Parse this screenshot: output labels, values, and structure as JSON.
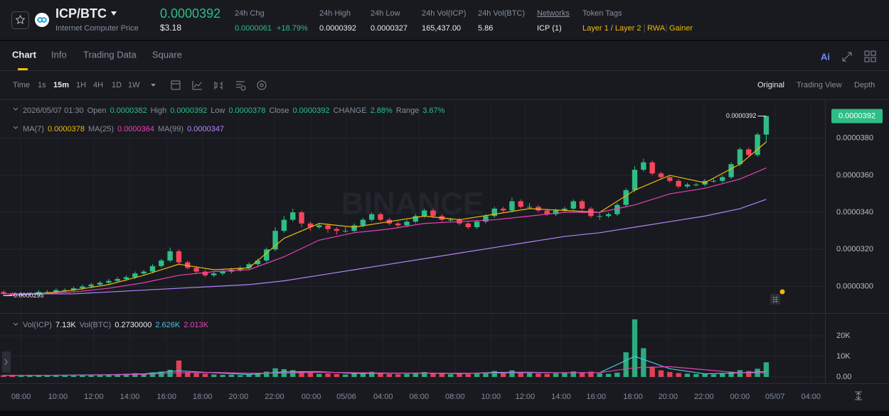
{
  "header": {
    "symbol": "ICP/BTC",
    "name": "Internet Computer Price",
    "price": "0.0000392",
    "price_usd": "$3.18",
    "stats": [
      {
        "label": "24h Chg",
        "value": "0.0000061",
        "change": "+18.79%"
      },
      {
        "label": "24h High",
        "value": "0.0000392"
      },
      {
        "label": "24h Low",
        "value": "0.0000327"
      },
      {
        "label": "24h Vol(ICP)",
        "value": "165,437.00"
      },
      {
        "label": "24h Vol(BTC)",
        "value": "5.86"
      },
      {
        "label": "Networks",
        "value": "ICP (1)"
      }
    ],
    "token_tags": {
      "label": "Token Tags",
      "values": [
        "Layer 1 / Layer 2",
        "RWA",
        "Gainer"
      ]
    }
  },
  "tabs": [
    "Chart",
    "Info",
    "Trading Data",
    "Square"
  ],
  "intervals": [
    "Time",
    "1s",
    "15m",
    "1H",
    "4H",
    "1D",
    "1W"
  ],
  "views": [
    "Original",
    "Trading View",
    "Depth"
  ],
  "watermark": "BINANCE",
  "chart_data": {
    "type": "candlestick",
    "readout": {
      "date": "2026/05/07 01:30",
      "fields": [
        {
          "label": "Open",
          "value": "0.0000382"
        },
        {
          "label": "High",
          "value": "0.0000392"
        },
        {
          "label": "Low",
          "value": "0.0000378"
        },
        {
          "label": "Close",
          "value": "0.0000392"
        },
        {
          "label": "CHANGE",
          "value": "2.88%"
        },
        {
          "label": "Range",
          "value": "3.67%"
        }
      ]
    },
    "xlim": [
      -0.4,
      93.7
    ],
    "xticks": [
      {
        "value": 2.0,
        "label": "08:00"
      },
      {
        "value": 6.2,
        "label": "10:00"
      },
      {
        "value": 10.3,
        "label": "12:00"
      },
      {
        "value": 14.4,
        "label": "14:00"
      },
      {
        "value": 18.6,
        "label": "16:00"
      },
      {
        "value": 22.7,
        "label": "18:00"
      },
      {
        "value": 26.8,
        "label": "20:00"
      },
      {
        "value": 30.9,
        "label": "22:00"
      },
      {
        "value": 35.1,
        "label": "00:00"
      },
      {
        "value": 39.1,
        "label": "05/06"
      },
      {
        "value": 43.3,
        "label": "04:00"
      },
      {
        "value": 47.4,
        "label": "06:00"
      },
      {
        "value": 51.5,
        "label": "08:00"
      },
      {
        "value": 55.6,
        "label": "10:00"
      },
      {
        "value": 59.5,
        "label": "12:00"
      },
      {
        "value": 63.6,
        "label": "14:00"
      },
      {
        "value": 67.6,
        "label": "16:00"
      },
      {
        "value": 71.8,
        "label": "18:00"
      },
      {
        "value": 75.8,
        "label": "20:00"
      },
      {
        "value": 79.9,
        "label": "22:00"
      },
      {
        "value": 84.0,
        "label": "00:00"
      },
      {
        "value": 88.0,
        "label": "05/07"
      },
      {
        "value": 92.1,
        "label": "04:00"
      }
    ],
    "ylim": [
      2.86e-05,
      4.01e-05
    ],
    "yticks": [
      {
        "value": 3e-05,
        "label": "0.0000300"
      },
      {
        "value": 3.2e-05,
        "label": "0.0000320"
      },
      {
        "value": 3.4e-05,
        "label": "0.0000340"
      },
      {
        "value": 3.6e-05,
        "label": "0.0000360"
      },
      {
        "value": 3.8e-05,
        "label": "0.0000380"
      }
    ],
    "up_color": "#2ebd85",
    "down_color": "#f6465d",
    "last_price": {
      "value": 3.92e-05,
      "label": "0.0000392"
    },
    "high_marker": "0.0000392",
    "low_marker": "0.0000295",
    "candles": [
      [
        2.97e-05,
        2.98e-05,
        2.95e-05,
        2.96e-05
      ],
      [
        2.96e-05,
        2.97e-05,
        2.95e-05,
        2.95e-05
      ],
      [
        2.95e-05,
        2.97e-05,
        2.95e-05,
        2.96e-05
      ],
      [
        2.96e-05,
        2.97e-05,
        2.95e-05,
        2.96e-05
      ],
      [
        2.96e-05,
        2.98e-05,
        2.95e-05,
        2.97e-05
      ],
      [
        2.97e-05,
        2.98e-05,
        2.96e-05,
        2.97e-05
      ],
      [
        2.97e-05,
        2.99e-05,
        2.96e-05,
        2.98e-05
      ],
      [
        2.98e-05,
        2.99e-05,
        2.97e-05,
        2.98e-05
      ],
      [
        2.98e-05,
        3e-05,
        2.97e-05,
        2.99e-05
      ],
      [
        2.99e-05,
        3.01e-05,
        2.98e-05,
        3e-05
      ],
      [
        3e-05,
        3.02e-05,
        2.99e-05,
        3.01e-05
      ],
      [
        3.01e-05,
        3.03e-05,
        3e-05,
        3.02e-05
      ],
      [
        3.02e-05,
        3.04e-05,
        3.01e-05,
        3.03e-05
      ],
      [
        3.03e-05,
        3.05e-05,
        3.02e-05,
        3.04e-05
      ],
      [
        3.04e-05,
        3.06e-05,
        3.03e-05,
        3.05e-05
      ],
      [
        3.05e-05,
        3.08e-05,
        3.04e-05,
        3.07e-05
      ],
      [
        3.07e-05,
        3.09e-05,
        3.06e-05,
        3.08e-05
      ],
      [
        3.08e-05,
        3.12e-05,
        3.07e-05,
        3.11e-05
      ],
      [
        3.11e-05,
        3.15e-05,
        3.1e-05,
        3.14e-05
      ],
      [
        3.14e-05,
        3.21e-05,
        3.13e-05,
        3.19e-05
      ],
      [
        3.19e-05,
        3.2e-05,
        3.12e-05,
        3.13e-05
      ],
      [
        3.13e-05,
        3.14e-05,
        3.09e-05,
        3.1e-05
      ],
      [
        3.1e-05,
        3.11e-05,
        3.07e-05,
        3.08e-05
      ],
      [
        3.08e-05,
        3.09e-05,
        3.05e-05,
        3.06e-05
      ],
      [
        3.06e-05,
        3.08e-05,
        3.05e-05,
        3.07e-05
      ],
      [
        3.07e-05,
        3.09e-05,
        3.06e-05,
        3.08e-05
      ],
      [
        3.08e-05,
        3.1e-05,
        3.07e-05,
        3.09e-05
      ],
      [
        3.09e-05,
        3.11e-05,
        3.08e-05,
        3.1e-05
      ],
      [
        3.1e-05,
        3.13e-05,
        3.09e-05,
        3.12e-05
      ],
      [
        3.12e-05,
        3.15e-05,
        3.11e-05,
        3.14e-05
      ],
      [
        3.14e-05,
        3.21e-05,
        3.13e-05,
        3.2e-05
      ],
      [
        3.2e-05,
        3.32e-05,
        3.19e-05,
        3.3e-05
      ],
      [
        3.3e-05,
        3.38e-05,
        3.29e-05,
        3.36e-05
      ],
      [
        3.36e-05,
        3.42e-05,
        3.35e-05,
        3.4e-05
      ],
      [
        3.4e-05,
        3.41e-05,
        3.32e-05,
        3.34e-05
      ],
      [
        3.34e-05,
        3.35e-05,
        3.3e-05,
        3.32e-05
      ],
      [
        3.32e-05,
        3.34e-05,
        3.31e-05,
        3.33e-05
      ],
      [
        3.33e-05,
        3.34e-05,
        3.29e-05,
        3.31e-05
      ],
      [
        3.31e-05,
        3.32e-05,
        3.28e-05,
        3.3e-05
      ],
      [
        3.3e-05,
        3.32e-05,
        3.29e-05,
        3.3e-05
      ],
      [
        3.3e-05,
        3.34e-05,
        3.29e-05,
        3.33e-05
      ],
      [
        3.33e-05,
        3.37e-05,
        3.32e-05,
        3.36e-05
      ],
      [
        3.36e-05,
        3.4e-05,
        3.35e-05,
        3.39e-05
      ],
      [
        3.39e-05,
        3.4e-05,
        3.35e-05,
        3.36e-05
      ],
      [
        3.36e-05,
        3.37e-05,
        3.33e-05,
        3.34e-05
      ],
      [
        3.34e-05,
        3.35e-05,
        3.32e-05,
        3.33e-05
      ],
      [
        3.33e-05,
        3.36e-05,
        3.32e-05,
        3.35e-05
      ],
      [
        3.35e-05,
        3.39e-05,
        3.34e-05,
        3.38e-05
      ],
      [
        3.38e-05,
        3.42e-05,
        3.37e-05,
        3.41e-05
      ],
      [
        3.41e-05,
        3.42e-05,
        3.37e-05,
        3.38e-05
      ],
      [
        3.38e-05,
        3.39e-05,
        3.35e-05,
        3.36e-05
      ],
      [
        3.36e-05,
        3.37e-05,
        3.35e-05,
        3.36e-05
      ],
      [
        3.36e-05,
        3.37e-05,
        3.33e-05,
        3.34e-05
      ],
      [
        3.34e-05,
        3.35e-05,
        3.31e-05,
        3.32e-05
      ],
      [
        3.32e-05,
        3.36e-05,
        3.31e-05,
        3.35e-05
      ],
      [
        3.35e-05,
        3.39e-05,
        3.34e-05,
        3.38e-05
      ],
      [
        3.38e-05,
        3.43e-05,
        3.37e-05,
        3.42e-05
      ],
      [
        3.42e-05,
        3.43e-05,
        3.4e-05,
        3.41e-05
      ],
      [
        3.41e-05,
        3.48e-05,
        3.4e-05,
        3.46e-05
      ],
      [
        3.46e-05,
        3.47e-05,
        3.42e-05,
        3.43e-05
      ],
      [
        3.43e-05,
        3.45e-05,
        3.42e-05,
        3.43e-05
      ],
      [
        3.43e-05,
        3.44e-05,
        3.4e-05,
        3.41e-05
      ],
      [
        3.41e-05,
        3.42e-05,
        3.38e-05,
        3.39e-05
      ],
      [
        3.39e-05,
        3.42e-05,
        3.38e-05,
        3.41e-05
      ],
      [
        3.41e-05,
        3.43e-05,
        3.4e-05,
        3.42e-05
      ],
      [
        3.42e-05,
        3.47e-05,
        3.41e-05,
        3.46e-05
      ],
      [
        3.46e-05,
        3.47e-05,
        3.41e-05,
        3.42e-05
      ],
      [
        3.42e-05,
        3.43e-05,
        3.37e-05,
        3.38e-05
      ],
      [
        3.38e-05,
        3.4e-05,
        3.36e-05,
        3.38e-05
      ],
      [
        3.38e-05,
        3.4e-05,
        3.37e-05,
        3.39e-05
      ],
      [
        3.39e-05,
        3.45e-05,
        3.38e-05,
        3.44e-05
      ],
      [
        3.44e-05,
        3.53e-05,
        3.43e-05,
        3.52e-05
      ],
      [
        3.52e-05,
        3.65e-05,
        3.51e-05,
        3.63e-05
      ],
      [
        3.63e-05,
        3.69e-05,
        3.62e-05,
        3.67e-05
      ],
      [
        3.67e-05,
        3.68e-05,
        3.6e-05,
        3.61e-05
      ],
      [
        3.61e-05,
        3.62e-05,
        3.58e-05,
        3.59e-05
      ],
      [
        3.59e-05,
        3.6e-05,
        3.56e-05,
        3.57e-05
      ],
      [
        3.57e-05,
        3.58e-05,
        3.53e-05,
        3.54e-05
      ],
      [
        3.54e-05,
        3.56e-05,
        3.53e-05,
        3.55e-05
      ],
      [
        3.55e-05,
        3.56e-05,
        3.54e-05,
        3.55e-05
      ],
      [
        3.55e-05,
        3.58e-05,
        3.54e-05,
        3.57e-05
      ],
      [
        3.57e-05,
        3.58e-05,
        3.56e-05,
        3.57e-05
      ],
      [
        3.57e-05,
        3.6e-05,
        3.56e-05,
        3.59e-05
      ],
      [
        3.59e-05,
        3.67e-05,
        3.58e-05,
        3.66e-05
      ],
      [
        3.66e-05,
        3.75e-05,
        3.65e-05,
        3.74e-05
      ],
      [
        3.74e-05,
        3.75e-05,
        3.7e-05,
        3.71e-05
      ],
      [
        3.71e-05,
        3.83e-05,
        3.7e-05,
        3.82e-05
      ],
      [
        3.82e-05,
        3.92e-05,
        3.78e-05,
        3.92e-05
      ]
    ],
    "ma_index": [
      0,
      4,
      8,
      12,
      16,
      20,
      24,
      28,
      32,
      36,
      40,
      44,
      48,
      52,
      56,
      60,
      64,
      68,
      72,
      76,
      80,
      84,
      87
    ],
    "ma_lines": [
      {
        "name": "MA(7)",
        "current": "0.0000378",
        "color": "#f0b90b",
        "values": [
          2.96e-05,
          2.96e-05,
          2.98e-05,
          3.01e-05,
          3.06e-05,
          3.12e-05,
          3.09e-05,
          3.1e-05,
          3.26e-05,
          3.34e-05,
          3.32e-05,
          3.35e-05,
          3.38e-05,
          3.36e-05,
          3.39e-05,
          3.42e-05,
          3.41e-05,
          3.4e-05,
          3.52e-05,
          3.6e-05,
          3.56e-05,
          3.66e-05,
          3.78e-05
        ]
      },
      {
        "name": "MA(25)",
        "current": "0.0000364",
        "color": "#eb40b5",
        "values": [
          2.96e-05,
          2.96e-05,
          2.97e-05,
          2.99e-05,
          3.02e-05,
          3.06e-05,
          3.08e-05,
          3.09e-05,
          3.16e-05,
          3.25e-05,
          3.29e-05,
          3.31e-05,
          3.34e-05,
          3.35e-05,
          3.36e-05,
          3.38e-05,
          3.4e-05,
          3.4e-05,
          3.44e-05,
          3.5e-05,
          3.53e-05,
          3.58e-05,
          3.64e-05
        ]
      },
      {
        "name": "MA(99)",
        "current": "0.0000347",
        "color": "#b385f8",
        "values": [
          2.95e-05,
          2.96e-05,
          2.96e-05,
          2.97e-05,
          2.98e-05,
          2.99e-05,
          3e-05,
          3.01e-05,
          3.03e-05,
          3.06e-05,
          3.09e-05,
          3.12e-05,
          3.15e-05,
          3.18e-05,
          3.21e-05,
          3.24e-05,
          3.27e-05,
          3.29e-05,
          3.32e-05,
          3.35e-05,
          3.38e-05,
          3.42e-05,
          3.47e-05
        ]
      }
    ],
    "volume": {
      "ylim": [
        0,
        29000
      ],
      "yticks": [
        {
          "value": 0,
          "label": "0.00"
        },
        {
          "value": 10000,
          "label": "10K"
        },
        {
          "value": 20000,
          "label": "20K"
        }
      ],
      "legend": [
        {
          "label": "Vol(ICP)",
          "value": "7.13K"
        },
        {
          "label": "Vol(BTC)",
          "value": "0.2730000"
        }
      ],
      "values": [
        900,
        600,
        500,
        700,
        800,
        600,
        900,
        700,
        1000,
        800,
        1200,
        900,
        1300,
        1000,
        1500,
        1800,
        1400,
        2200,
        2600,
        3500,
        8000,
        2400,
        1800,
        1600,
        1200,
        1000,
        1100,
        900,
        1300,
        1500,
        2600,
        4200,
        3800,
        3300,
        2800,
        2000,
        1500,
        1700,
        1400,
        1200,
        1600,
        2100,
        2500,
        1800,
        1400,
        1300,
        1500,
        2000,
        2400,
        1900,
        1600,
        1300,
        1500,
        1400,
        1700,
        2200,
        2900,
        2100,
        3200,
        2400,
        2000,
        1700,
        1500,
        1800,
        2000,
        2700,
        2300,
        2600,
        1800,
        1500,
        2100,
        12000,
        28000,
        14000,
        5000,
        3200,
        2400,
        1900,
        1600,
        1400,
        1500,
        1300,
        1700,
        2600,
        3300,
        2900,
        4000,
        7130
      ],
      "ma_lines": [
        {
          "current": "2.626K",
          "color": "#49c5e0",
          "values": [
            800,
            800,
            900,
            1100,
            1500,
            3000,
            2000,
            1200,
            2500,
            2600,
            1700,
            1800,
            1900,
            1600,
            2200,
            2300,
            2000,
            2100,
            10000,
            4000,
            1500,
            2000,
            2626
          ]
        },
        {
          "current": "2.013K",
          "color": "#eb40b5",
          "values": [
            800,
            800,
            850,
            1000,
            1300,
            2000,
            2200,
            1800,
            1900,
            2300,
            2100,
            1900,
            1900,
            1800,
            1900,
            2100,
            2100,
            2100,
            4500,
            5000,
            3500,
            2000,
            2013
          ]
        }
      ]
    }
  }
}
